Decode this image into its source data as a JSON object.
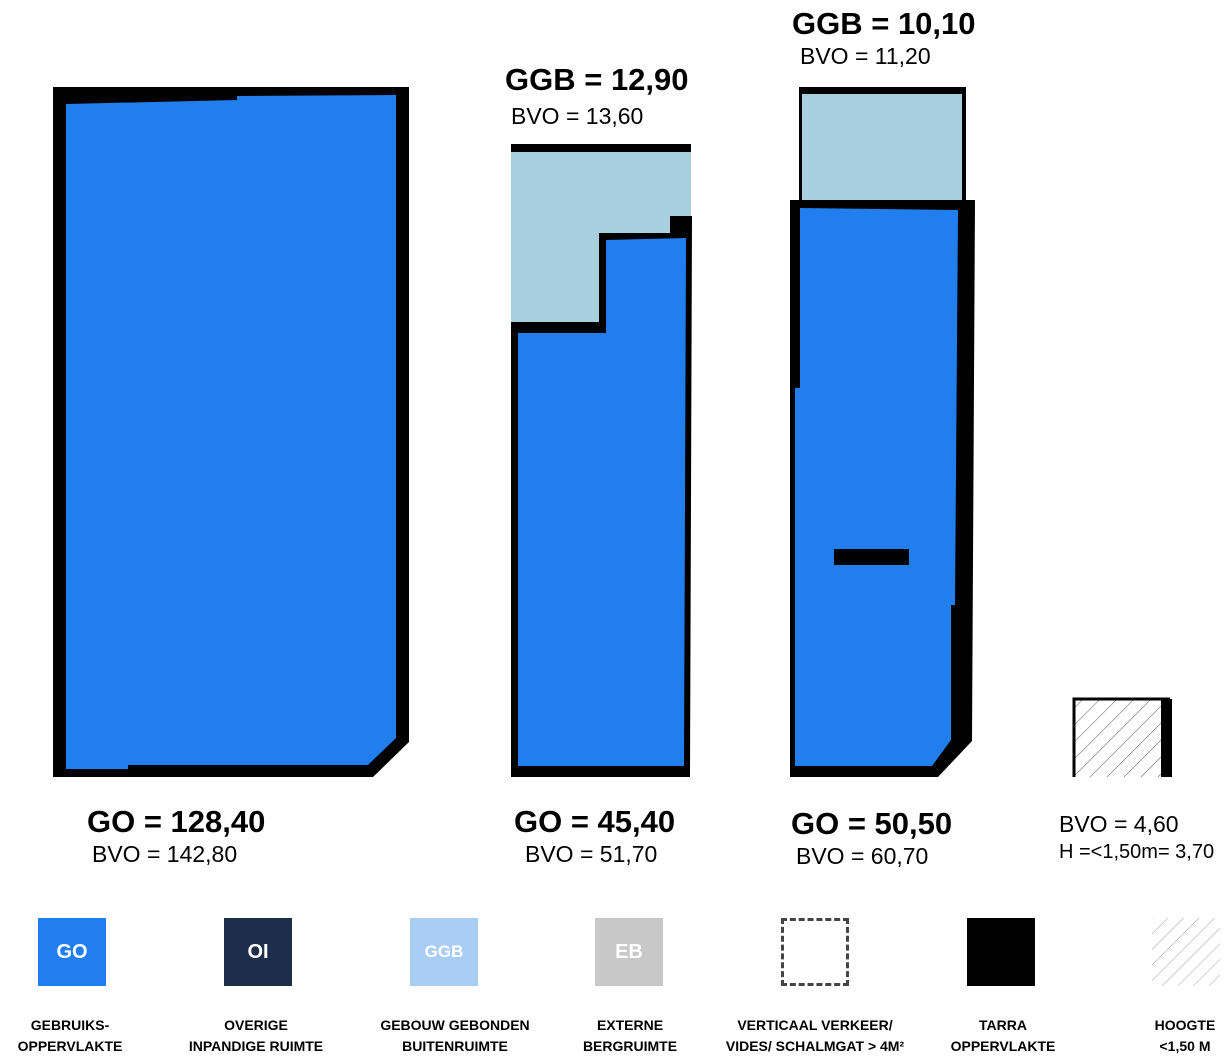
{
  "colors": {
    "go": "#207eee",
    "oi": "#1f2d4d",
    "ggb_plan": "#a8cfdd",
    "ggb_legend": "#a9cdf5",
    "eb": "#c8c8c8",
    "tarra": "#000000"
  },
  "plans": [
    {
      "go": "GO = 128,40",
      "bvo": "BVO = 142,80"
    },
    {
      "ggb": "GGB = 12,90",
      "ggb_bvo": "BVO = 13,60",
      "go": "GO = 45,40",
      "bvo": "BVO = 51,70"
    },
    {
      "ggb": "GGB = 10,10",
      "ggb_bvo": "BVO = 11,20",
      "go": "GO = 50,50",
      "bvo": "BVO = 60,70"
    },
    {
      "bvo": "BVO = 4,60",
      "h": "H =<1,50m= 3,70"
    }
  ],
  "legend": [
    {
      "code": "GO",
      "line1": "GEBRUIKS-",
      "line2": "OPPERVLAKTE"
    },
    {
      "code": "OI",
      "line1": "OVERIGE",
      "line2": "INPANDIGE RUIMTE"
    },
    {
      "code": "GGB",
      "line1": "GEBOUW GEBONDEN",
      "line2": "BUITENRUIMTE"
    },
    {
      "code": "EB",
      "line1": "EXTERNE",
      "line2": "BERGRUIMTE"
    },
    {
      "code": "",
      "line1": "VERTICAAL VERKEER/",
      "line2": "VIDES/ SCHALMGAT > 4M²"
    },
    {
      "code": "",
      "line1": "TARRA",
      "line2": "OPPERVLAKTE"
    },
    {
      "code": "",
      "line1": "HOOGTE",
      "line2": "<1,50 M"
    }
  ]
}
